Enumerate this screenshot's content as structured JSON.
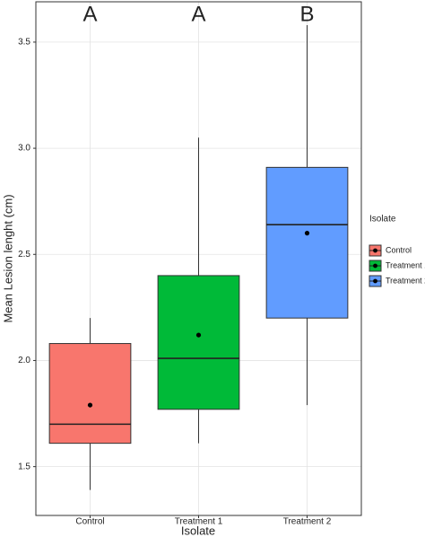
{
  "chart_data": {
    "type": "box",
    "x_label": "Isolate",
    "y_label": "Mean Lesion lenght (cm)",
    "legend_title": "Isolate",
    "categories": [
      "Control",
      "Treatment 1",
      "Treatment 2"
    ],
    "colors": [
      "#f8766d",
      "#00ba38",
      "#619cff"
    ],
    "min": [
      1.39,
      1.61,
      1.79
    ],
    "q1": [
      1.61,
      1.77,
      2.2
    ],
    "median": [
      1.7,
      2.01,
      2.64
    ],
    "q3": [
      2.08,
      2.4,
      2.91
    ],
    "max": [
      2.2,
      3.05,
      3.58
    ],
    "mean": [
      1.79,
      2.12,
      2.6
    ],
    "group_labels": [
      "A",
      "A",
      "B"
    ],
    "ylim": [
      1.27,
      3.69
    ],
    "yticks": [
      1.5,
      {
        "value": 2,
        "label": "2.0"
      },
      2.5,
      {
        "value": 3,
        "label": "3.0"
      },
      3.5
    ],
    "grid": true,
    "legend_position": "right"
  }
}
